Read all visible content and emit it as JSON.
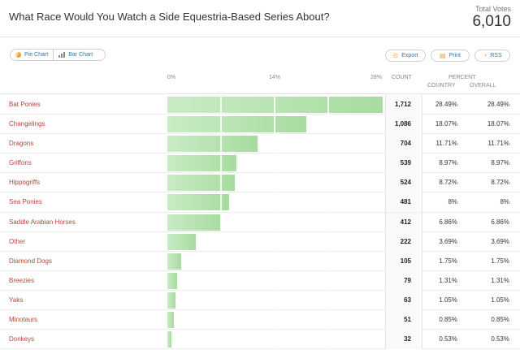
{
  "header": {
    "title": "What Race Would You Watch a Side Equestria-Based Series About?",
    "total_votes_label": "Total Votes",
    "total_votes": "6,010"
  },
  "toolbar": {
    "pie_chart": "Pie Chart",
    "bar_chart": "Bar Chart",
    "export": "Export",
    "print": "Print",
    "rss": "RSS"
  },
  "columns": {
    "axis_0": "0%",
    "axis_14": "14%",
    "axis_28": "28%",
    "count": "COUNT",
    "percent": "PERCENT",
    "country": "COUNTRY",
    "overall": "OVERALL"
  },
  "colors": {
    "label": "#b5473b",
    "bar_light": "#c9ebc5",
    "bar_dark": "#a7dc9f",
    "link": "#2a7ab0",
    "accent": "#f0a030"
  },
  "icons": {
    "pie": "pie-chart-icon",
    "bar": "bar-chart-icon",
    "export": "export-icon",
    "print": "print-icon",
    "rss": "rss-icon"
  },
  "chart_data": {
    "type": "bar",
    "categories": [
      "Bat Ponies",
      "Changelings",
      "Dragons",
      "Griffons",
      "Hippogriffs",
      "Sea Ponies",
      "Saddle Arabian Horses",
      "Other",
      "Diamond Dogs",
      "Breezies",
      "Yaks",
      "Minotaurs",
      "Donkeys"
    ],
    "values": [
      28.49,
      18.07,
      11.71,
      8.97,
      8.72,
      8,
      6.86,
      3.69,
      1.75,
      1.31,
      1.05,
      0.85,
      0.53
    ],
    "xlim": [
      0,
      28
    ],
    "rows": [
      {
        "label": "Bat Ponies",
        "count": "1,712",
        "country": "28.49%",
        "overall": "28.49%"
      },
      {
        "label": "Changelings",
        "count": "1,086",
        "country": "18.07%",
        "overall": "18.07%"
      },
      {
        "label": "Dragons",
        "count": "704",
        "country": "11.71%",
        "overall": "11.71%"
      },
      {
        "label": "Griffons",
        "count": "539",
        "country": "8.97%",
        "overall": "8.97%"
      },
      {
        "label": "Hippogriffs",
        "count": "524",
        "country": "8.72%",
        "overall": "8.72%"
      },
      {
        "label": "Sea Ponies",
        "count": "481",
        "country": "8%",
        "overall": "8%"
      },
      {
        "label": "Saddle Arabian Horses",
        "count": "412",
        "country": "6.86%",
        "overall": "6.86%"
      },
      {
        "label": "Other",
        "count": "222",
        "country": "3.69%",
        "overall": "3.69%"
      },
      {
        "label": "Diamond Dogs",
        "count": "105",
        "country": "1.75%",
        "overall": "1.75%"
      },
      {
        "label": "Breezies",
        "count": "79",
        "country": "1.31%",
        "overall": "1.31%"
      },
      {
        "label": "Yaks",
        "count": "63",
        "country": "1.05%",
        "overall": "1.05%"
      },
      {
        "label": "Minotaurs",
        "count": "51",
        "country": "0.85%",
        "overall": "0.85%"
      },
      {
        "label": "Donkeys",
        "count": "32",
        "country": "0.53%",
        "overall": "0.53%"
      }
    ]
  }
}
